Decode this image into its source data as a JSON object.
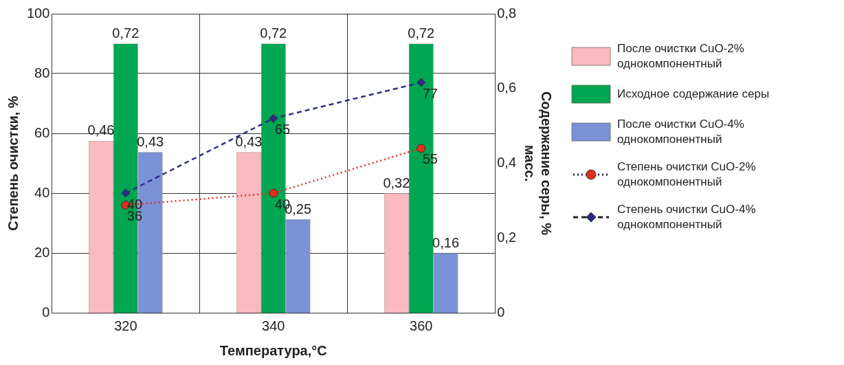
{
  "chart_data": {
    "type": "bar",
    "xlabel": "Температура,°C",
    "ylabel": "Степень очистки, %",
    "y2label": "Содержание серы, % масс.",
    "categories": [
      "320",
      "340",
      "360"
    ],
    "series": [
      {
        "name": "После очистки CuO-2% однокомпонентный",
        "axis": "y2",
        "color": "#fbb9c0",
        "values": [
          0.46,
          0.43,
          0.32
        ],
        "value_labels": [
          "0,46",
          "0,43",
          "0,32"
        ]
      },
      {
        "name": "Исходное содержание серы",
        "axis": "y2",
        "color": "#00a651",
        "values": [
          0.72,
          0.72,
          0.72
        ],
        "value_labels": [
          "0,72",
          "0,72",
          "0,72"
        ]
      },
      {
        "name": "После очистки CuO-4% однокомпонентный",
        "axis": "y2",
        "color": "#7b92d6",
        "values": [
          0.43,
          0.25,
          0.16
        ],
        "value_labels": [
          "0,43",
          "0,25",
          "0,16"
        ]
      },
      {
        "name": "Степень очистки CuO-2% однокомпонентный",
        "type": "line",
        "axis": "y",
        "color": "#e0301e",
        "marker": "circle",
        "line_style": "dotted",
        "values": [
          36,
          40,
          55
        ],
        "value_labels": [
          "36",
          "40",
          "55"
        ]
      },
      {
        "name": "Степень очистки CuO-4% однокомпонентный",
        "type": "line",
        "axis": "y",
        "color": "#2b2b8c",
        "marker": "diamond",
        "line_style": "dashed",
        "values": [
          40,
          65,
          77
        ],
        "value_labels": [
          "40",
          "65",
          "77"
        ]
      }
    ],
    "ylim": [
      0,
      100
    ],
    "yticks": [
      0,
      20,
      40,
      60,
      80,
      100
    ],
    "y2lim": [
      0,
      0.8
    ],
    "y2ticks": [
      {
        "value": 0,
        "label": "0"
      },
      {
        "value": 0.2,
        "label": "0,2"
      },
      {
        "value": 0.4,
        "label": "0,4"
      },
      {
        "value": 0.6,
        "label": "0,6"
      },
      {
        "value": 0.8,
        "label": "0,8"
      }
    ],
    "grid": true,
    "legend": "right"
  }
}
